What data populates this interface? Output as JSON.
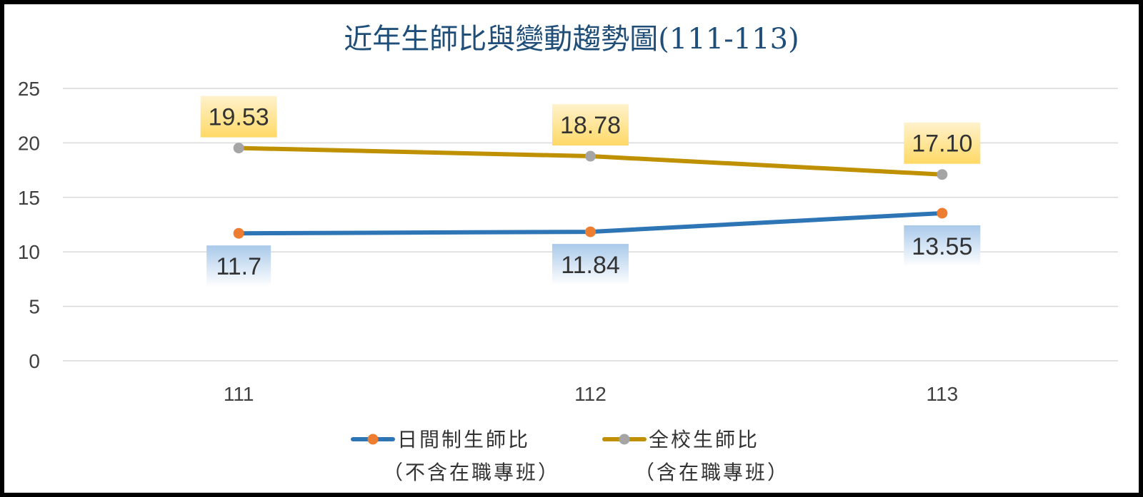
{
  "chart_data": {
    "type": "line",
    "title": "近年生師比與變動趨勢圖(111-113)",
    "categories": [
      "111",
      "112",
      "113"
    ],
    "ylim": [
      0,
      25
    ],
    "yticks": [
      0,
      5,
      10,
      15,
      20,
      25
    ],
    "grid": true,
    "legend_position": "bottom",
    "series": [
      {
        "key": "day",
        "name_lines": [
          "日間制生師比",
          "（不含在職專班）"
        ],
        "values": [
          11.7,
          11.84,
          13.55
        ],
        "labels": [
          "11.7",
          "11.84",
          "13.55"
        ],
        "label_position": "below",
        "line_color": "#2e75b6",
        "marker_color": "#ed7d31",
        "label_bg_top": "#a9c9ea",
        "label_bg_bottom": "#ffffff"
      },
      {
        "key": "school",
        "name_lines": [
          "全校生師比",
          "（含在職專班）"
        ],
        "values": [
          19.53,
          18.78,
          17.1
        ],
        "labels": [
          "19.53",
          "18.78",
          "17.10"
        ],
        "label_position": "above",
        "line_color": "#bf9000",
        "marker_color": "#a5a5a5",
        "label_bg_top": "#fff2cc",
        "label_bg_bottom": "#ffd966"
      }
    ]
  }
}
